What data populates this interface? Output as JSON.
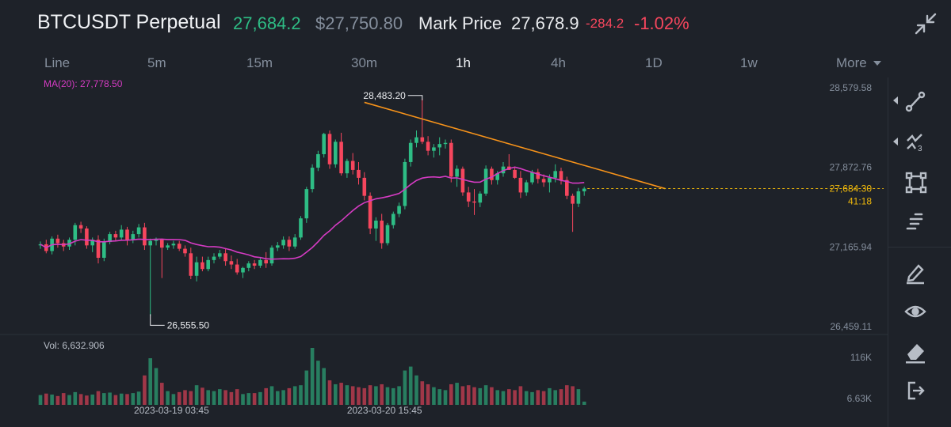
{
  "header": {
    "symbol": "BTCUSDT Perpetual",
    "last_price": "27,684.2",
    "usd_price": "$27,750.80",
    "mark_label": "Mark Price",
    "mark_price": "27,678.9",
    "change": "-284.2",
    "change_pct": "-1.02%"
  },
  "tabs": [
    "Line",
    "5m",
    "15m",
    "30m",
    "1h",
    "4h",
    "1D",
    "1w"
  ],
  "active_tab": "1h",
  "more_label": "More",
  "toolbar_icons": [
    "trend-line-icon",
    "multi-line-icon",
    "rectangle-icon",
    "text-lines-icon",
    "brush-icon",
    "eye-icon",
    "eraser-icon",
    "exit-icon"
  ],
  "colors": {
    "up": "#2ebd85",
    "down": "#f6465d",
    "ma": "#d53bc3",
    "trendline": "#f7931a",
    "background": "#1e2229",
    "price_label": "#f0b90b"
  },
  "chart_data": {
    "type": "candlestick",
    "interval": "1h",
    "indicator_label": "MA(20): 27,778.50",
    "price_axis_labels": [
      "28,579.58",
      "27,872.76",
      "27,165.94",
      "26,459.11"
    ],
    "price_axis_values": [
      28579.58,
      27872.76,
      27165.94,
      26459.11
    ],
    "current_price_label": "27,684.30",
    "countdown": "41:18",
    "annotations": {
      "high": "28,483.20",
      "low": "26,555.50"
    },
    "volume_label": "Vol: 6,632.906",
    "volume_axis_labels": [
      "116K",
      "6.63K"
    ],
    "volume_axis_values": [
      116000,
      6630
    ],
    "time_labels": [
      {
        "text": "2023-03-19 03:45",
        "index": 18
      },
      {
        "text": "2023-03-20 15:45",
        "index": 54
      }
    ],
    "candles": [
      [
        27180,
        27215,
        27150,
        27190
      ],
      [
        27190,
        27230,
        27110,
        27130
      ],
      [
        27130,
        27260,
        27100,
        27240
      ],
      [
        27240,
        27275,
        27160,
        27200
      ],
      [
        27200,
        27230,
        27130,
        27170
      ],
      [
        27170,
        27250,
        27140,
        27230
      ],
      [
        27230,
        27380,
        27180,
        27360
      ],
      [
        27360,
        27390,
        27290,
        27330
      ],
      [
        27330,
        27350,
        27150,
        27180
      ],
      [
        27180,
        27250,
        27120,
        27230
      ],
      [
        27230,
        27270,
        27020,
        27070
      ],
      [
        27070,
        27240,
        27040,
        27210
      ],
      [
        27210,
        27300,
        27190,
        27280
      ],
      [
        27280,
        27310,
        27220,
        27250
      ],
      [
        27250,
        27360,
        27230,
        27320
      ],
      [
        27320,
        27345,
        27180,
        27230
      ],
      [
        27230,
        27310,
        27200,
        27280
      ],
      [
        27280,
        27370,
        27250,
        27340
      ],
      [
        27340,
        27380,
        27140,
        27180
      ],
      [
        27180,
        27240,
        26555,
        27220
      ],
      [
        27220,
        27250,
        27180,
        27230
      ],
      [
        27230,
        27240,
        26890,
        27160
      ],
      [
        27160,
        27200,
        27140,
        27180
      ],
      [
        27180,
        27220,
        27150,
        27195
      ],
      [
        27195,
        27220,
        27130,
        27150
      ],
      [
        27150,
        27180,
        27080,
        27110
      ],
      [
        27110,
        27160,
        26880,
        26910
      ],
      [
        26910,
        27080,
        26860,
        27030
      ],
      [
        27030,
        27080,
        26950,
        26970
      ],
      [
        26970,
        27080,
        26950,
        27050
      ],
      [
        27050,
        27110,
        27020,
        27080
      ],
      [
        27080,
        27140,
        27060,
        27110
      ],
      [
        27110,
        27150,
        27000,
        27040
      ],
      [
        27040,
        27090,
        26970,
        27010
      ],
      [
        27010,
        27060,
        26920,
        26940
      ],
      [
        26940,
        26990,
        26890,
        26980
      ],
      [
        26980,
        27040,
        26950,
        27020
      ],
      [
        27020,
        27050,
        26970,
        27000
      ],
      [
        27000,
        27070,
        26980,
        27050
      ],
      [
        27050,
        27120,
        26980,
        27020
      ],
      [
        27020,
        27180,
        27000,
        27160
      ],
      [
        27160,
        27210,
        27130,
        27180
      ],
      [
        27180,
        27260,
        27150,
        27230
      ],
      [
        27230,
        27260,
        27130,
        27170
      ],
      [
        27170,
        27280,
        27150,
        27250
      ],
      [
        27250,
        27440,
        27230,
        27420
      ],
      [
        27420,
        27700,
        27380,
        27680
      ],
      [
        27680,
        27900,
        27650,
        27870
      ],
      [
        27870,
        28020,
        27840,
        27990
      ],
      [
        27990,
        28180,
        27960,
        28170
      ],
      [
        28170,
        28200,
        27860,
        27900
      ],
      [
        27900,
        28120,
        27870,
        28100
      ],
      [
        28100,
        28180,
        27800,
        27820
      ],
      [
        27820,
        27950,
        27780,
        27930
      ],
      [
        27930,
        28000,
        27810,
        27850
      ],
      [
        27850,
        27920,
        27720,
        27780
      ],
      [
        27780,
        27830,
        27580,
        27620
      ],
      [
        27620,
        27650,
        27280,
        27330
      ],
      [
        27330,
        27430,
        27220,
        27400
      ],
      [
        27400,
        27460,
        27150,
        27200
      ],
      [
        27200,
        27380,
        27180,
        27360
      ],
      [
        27360,
        27480,
        27330,
        27460
      ],
      [
        27460,
        27560,
        27430,
        27530
      ],
      [
        27530,
        27950,
        27500,
        27920
      ],
      [
        27920,
        28120,
        27880,
        28090
      ],
      [
        28090,
        28200,
        28050,
        28140
      ],
      [
        28140,
        28483,
        28080,
        28100
      ],
      [
        28100,
        28150,
        27980,
        28020
      ],
      [
        28020,
        28080,
        27960,
        28050
      ],
      [
        28050,
        28140,
        27980,
        28080
      ],
      [
        28080,
        28120,
        28040,
        28090
      ],
      [
        28090,
        28120,
        27740,
        27790
      ],
      [
        27790,
        27890,
        27700,
        27860
      ],
      [
        27860,
        27880,
        27620,
        27650
      ],
      [
        27650,
        27700,
        27520,
        27570
      ],
      [
        27570,
        27680,
        27450,
        27560
      ],
      [
        27560,
        27660,
        27520,
        27640
      ],
      [
        27640,
        27890,
        27620,
        27860
      ],
      [
        27860,
        27880,
        27720,
        27760
      ],
      [
        27760,
        27840,
        27720,
        27820
      ],
      [
        27820,
        27920,
        27790,
        27880
      ],
      [
        27880,
        27990,
        27850,
        27850
      ],
      [
        27850,
        27880,
        27770,
        27780
      ],
      [
        27780,
        27840,
        27600,
        27650
      ],
      [
        27650,
        27760,
        27620,
        27740
      ],
      [
        27740,
        27850,
        27720,
        27830
      ],
      [
        27830,
        27860,
        27730,
        27770
      ],
      [
        27770,
        27810,
        27700,
        27740
      ],
      [
        27740,
        27810,
        27650,
        27780
      ],
      [
        27780,
        27900,
        27740,
        27840
      ],
      [
        27840,
        27870,
        27720,
        27760
      ],
      [
        27760,
        27790,
        27590,
        27620
      ],
      [
        27620,
        27640,
        27300,
        27550
      ],
      [
        27550,
        27690,
        27520,
        27660
      ],
      [
        27660,
        27700,
        27620,
        27684
      ]
    ],
    "volumes": [
      20000,
      23000,
      21000,
      18000,
      24000,
      20000,
      26000,
      22000,
      19000,
      21000,
      28000,
      24000,
      25000,
      20000,
      23000,
      22000,
      24000,
      27000,
      60000,
      95000,
      75000,
      45000,
      28000,
      22000,
      26000,
      30000,
      28000,
      40000,
      35000,
      30000,
      28000,
      32000,
      30000,
      26000,
      32000,
      22000,
      24000,
      24000,
      26000,
      34000,
      38000,
      28000,
      30000,
      34000,
      38000,
      40000,
      70000,
      116000,
      90000,
      75000,
      50000,
      42000,
      45000,
      40000,
      38000,
      36000,
      34000,
      40000,
      38000,
      42000,
      36000,
      34000,
      38000,
      70000,
      78000,
      60000,
      48000,
      42000,
      36000,
      32000,
      30000,
      42000,
      45000,
      38000,
      40000,
      36000,
      34000,
      40000,
      36000,
      30000,
      28000,
      32000,
      30000,
      38000,
      28000,
      26000,
      30000,
      28000,
      34000,
      30000,
      32000,
      40000,
      38000,
      32000,
      6630
    ],
    "ma_period": 20,
    "trendline": {
      "from": {
        "index": 56,
        "price": 28450
      },
      "to": {
        "index": 108,
        "price": 27684
      }
    }
  }
}
